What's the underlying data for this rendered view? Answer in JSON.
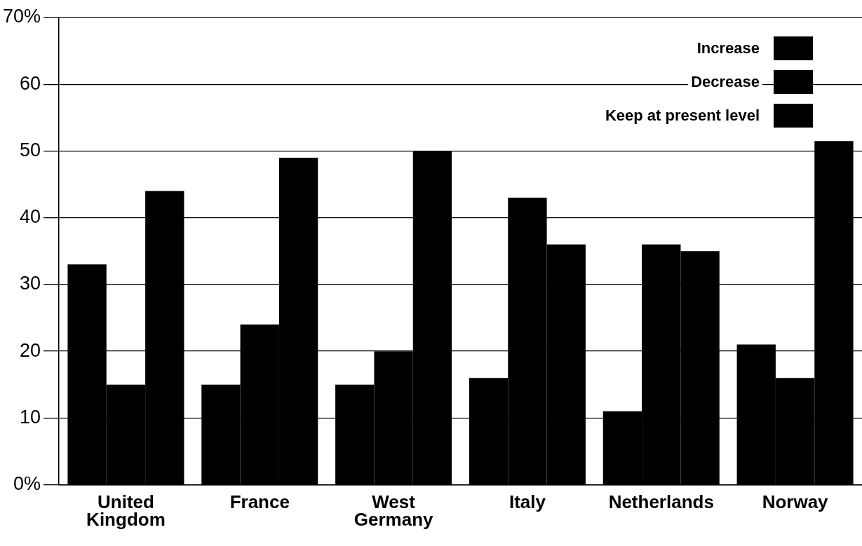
{
  "chart_data": {
    "type": "bar",
    "categories": [
      "United Kingdom",
      "France",
      "West Germany",
      "Italy",
      "Netherlands",
      "Norway"
    ],
    "series": [
      {
        "name": "Increase",
        "color": "#000000",
        "values": [
          33,
          15,
          15,
          16,
          11,
          21
        ]
      },
      {
        "name": "Decrease",
        "color": "#000000",
        "values": [
          15,
          24,
          20,
          43,
          36,
          16
        ]
      },
      {
        "name": "Keep at present level",
        "color": "#000000",
        "values": [
          44,
          49,
          50,
          36,
          35,
          51.5
        ]
      }
    ],
    "ylim": [
      0,
      70
    ],
    "yticks": [
      {
        "value": 0,
        "label": "0%"
      },
      10,
      20,
      30,
      40,
      50,
      60,
      {
        "value": 70,
        "label": "70%"
      }
    ],
    "grid": "y",
    "legend": "top right"
  }
}
